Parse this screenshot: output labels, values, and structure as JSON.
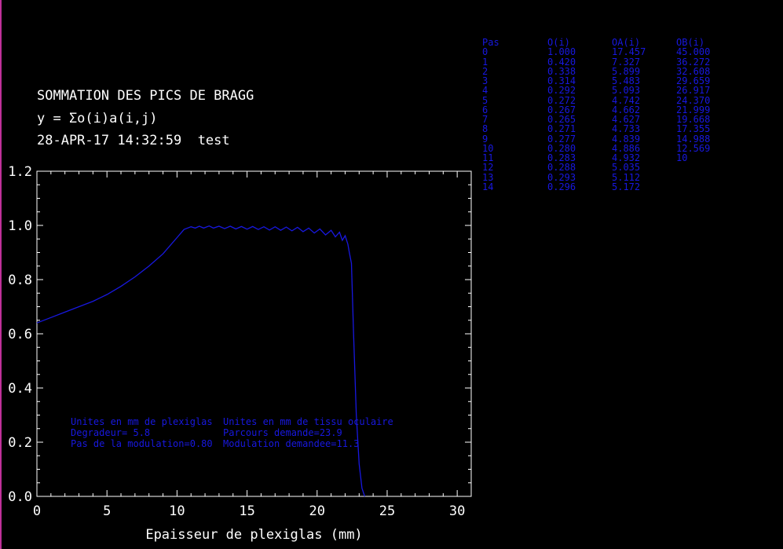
{
  "header": {
    "title": "SOMMATION DES PICS DE BRAGG",
    "formula": "y = Σo(i)a(i,j)",
    "timestamp": "28-APR-17 14:32:59  test"
  },
  "colors": {
    "background": "#000000",
    "text": "#ffffff",
    "curve": "#1818e0",
    "edge": "#c0309a"
  },
  "notes": {
    "col1": [
      "Unites en mm de plexiglas",
      "Degradeur= 5.8",
      "Pas de la modulation=0.80"
    ],
    "col2": [
      "Unites en mm de tissu oculaire",
      "Parcours demande=23.9",
      "Modulation demandee=11.3"
    ]
  },
  "table": {
    "headers": [
      "Pas",
      "O(i)",
      "OA(i)",
      "OB(i)"
    ],
    "rows": [
      [
        "0",
        "1.000",
        "17.457",
        "45.000"
      ],
      [
        "1",
        "0.420",
        "7.327",
        "36.272"
      ],
      [
        "2",
        "0.338",
        "5.899",
        "32.608"
      ],
      [
        "3",
        "0.314",
        "5.483",
        "29.659"
      ],
      [
        "4",
        "0.292",
        "5.093",
        "26.917"
      ],
      [
        "5",
        "0.272",
        "4.742",
        "24.370"
      ],
      [
        "6",
        "0.267",
        "4.662",
        "21.999"
      ],
      [
        "7",
        "0.265",
        "4.627",
        "19.668"
      ],
      [
        "8",
        "0.271",
        "4.733",
        "17.355"
      ],
      [
        "9",
        "0.277",
        "4.839",
        "14.988"
      ],
      [
        "10",
        "0.280",
        "4.886",
        "12.569"
      ],
      [
        "11",
        "0.283",
        "4.932",
        "10"
      ],
      [
        "12",
        "0.288",
        "5.035",
        ""
      ],
      [
        "13",
        "0.293",
        "5.112",
        ""
      ],
      [
        "14",
        "0.296",
        "5.172",
        ""
      ]
    ]
  },
  "chart_data": {
    "type": "line",
    "title": "",
    "xlabel": "Epaisseur de plexiglas (mm)",
    "ylabel": "",
    "xlim": [
      0,
      31
    ],
    "ylim": [
      0,
      1.2
    ],
    "xticks": [
      0,
      5,
      10,
      15,
      20,
      25,
      30
    ],
    "xtick_labels": [
      "0",
      "5",
      "10",
      "15",
      "20",
      "25",
      "30"
    ],
    "yticks": [
      0,
      0.2,
      0.4,
      0.6,
      0.8,
      1.0,
      1.2
    ],
    "ytick_labels": [
      "0.0",
      "0.2",
      "0.4",
      "0.6",
      "0.8",
      "1.0",
      "1.2"
    ],
    "grid": false,
    "series": [
      {
        "x": [
          0,
          1,
          2,
          3,
          4,
          5,
          6,
          7,
          8,
          9,
          10,
          10.5,
          11,
          11.3,
          11.6,
          11.9,
          12.3,
          12.6,
          13.0,
          13.4,
          13.8,
          14.2,
          14.6,
          15.0,
          15.4,
          15.8,
          16.2,
          16.6,
          17.0,
          17.4,
          17.8,
          18.2,
          18.6,
          19.0,
          19.4,
          19.8,
          20.2,
          20.6,
          21.0,
          21.3,
          21.6,
          21.8,
          22.0,
          22.2,
          22.3,
          22.45,
          22.6,
          22.8,
          23.0,
          23.2,
          23.4
        ],
        "y": [
          0.64,
          0.66,
          0.68,
          0.7,
          0.72,
          0.745,
          0.775,
          0.81,
          0.85,
          0.895,
          0.955,
          0.985,
          0.995,
          0.99,
          0.997,
          0.99,
          0.998,
          0.99,
          0.997,
          0.988,
          0.997,
          0.987,
          0.996,
          0.986,
          0.996,
          0.985,
          0.995,
          0.983,
          0.995,
          0.982,
          0.994,
          0.98,
          0.993,
          0.977,
          0.99,
          0.972,
          0.987,
          0.965,
          0.982,
          0.958,
          0.975,
          0.945,
          0.962,
          0.93,
          0.9,
          0.86,
          0.6,
          0.3,
          0.12,
          0.03,
          0.0
        ]
      }
    ]
  }
}
